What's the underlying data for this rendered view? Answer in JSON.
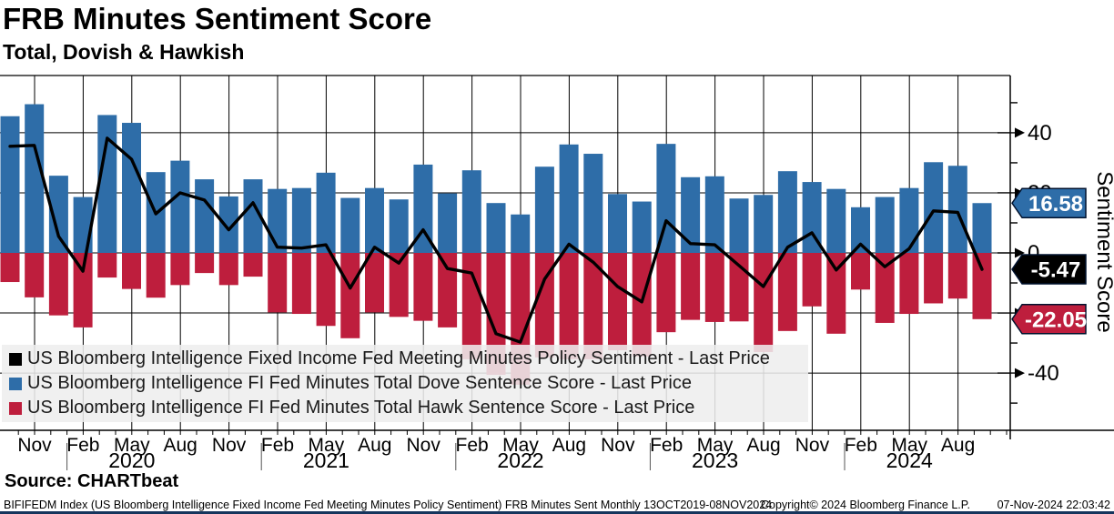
{
  "header": {
    "title": "FRB Minutes Sentiment Score",
    "subtitle": "Total, Dovish & Hawkish"
  },
  "chart_data": {
    "type": "combo_bar_line",
    "series": [
      {
        "name": "US Bloomberg Intelligence Fixed Income Fed Meeting Minutes Policy Sentiment - Last Price",
        "type": "line",
        "color": "#000000",
        "values": [
          35.5,
          35.8,
          5.5,
          -6.1,
          38.2,
          31.2,
          13.0,
          20.0,
          17.6,
          7.7,
          16.7,
          1.9,
          1.6,
          2.7,
          -11.7,
          1.9,
          -3.4,
          7.7,
          -5.2,
          -6.7,
          -26.9,
          -29.7,
          -8.7,
          2.9,
          -3.1,
          -11.2,
          -16.3,
          10.7,
          3.1,
          2.7,
          -4.2,
          -11.2,
          1.9,
          6.7,
          -5.7,
          2.9,
          -4.6,
          1.4,
          14.0,
          13.5,
          -5.47
        ]
      },
      {
        "name": "US Bloomberg Intelligence FI Fed Minutes Total Dove Sentence Score - Last Price",
        "type": "bar",
        "color": "#2e6da8",
        "values": [
          45.5,
          49.5,
          25.7,
          18.6,
          45.9,
          43.3,
          26.9,
          30.7,
          24.5,
          18.8,
          24.5,
          21.3,
          21.6,
          26.7,
          18.3,
          21.6,
          17.8,
          29.4,
          19.8,
          27.5,
          16.6,
          12.8,
          28.7,
          36.1,
          33.0,
          19.6,
          17.1,
          36.3,
          25.2,
          25.5,
          18.1,
          19.3,
          27.2,
          23.6,
          21.3,
          15.2,
          18.6,
          21.6,
          30.2,
          29.0,
          16.58
        ]
      },
      {
        "name": "US Bloomberg Intelligence FI Fed Minutes Total Hawk Sentence Score - Last Price",
        "type": "bar",
        "color": "#be1e3d",
        "values": [
          -9.7,
          -14.8,
          -20.8,
          -24.8,
          -8.2,
          -12.0,
          -14.9,
          -10.7,
          -6.7,
          -10.7,
          -7.9,
          -19.8,
          -20.3,
          -24.3,
          -28.4,
          -19.8,
          -21.3,
          -22.6,
          -24.8,
          -35.4,
          -40.6,
          -43.9,
          -34.8,
          -35.4,
          -35.4,
          -32.4,
          -34.5,
          -26.4,
          -22.3,
          -23.0,
          -22.8,
          -33.0,
          -26.0,
          -17.8,
          -26.9,
          -12.2,
          -23.3,
          -20.3,
          -16.8,
          -15.2,
          -22.05
        ]
      }
    ],
    "x_axis": {
      "month_labels": [
        "Nov",
        "Feb",
        "May",
        "Aug",
        "Nov",
        "Feb",
        "May",
        "Aug",
        "Nov",
        "Feb",
        "May",
        "Aug",
        "Nov",
        "Feb",
        "May",
        "Aug",
        "Nov",
        "Feb",
        "May",
        "Aug"
      ],
      "year_labels": [
        "2020",
        "2021",
        "2022",
        "2023",
        "2024"
      ]
    },
    "y_axis": {
      "label": "Sentiment Score",
      "major_ticks": [
        40,
        20,
        0,
        -20,
        -40
      ],
      "minor_ticks": [
        50,
        30,
        10,
        -10,
        -30,
        -50
      ],
      "ylim": [
        -59,
        59
      ],
      "grid": true
    },
    "last_value_tags": [
      {
        "label": "16.58",
        "value": 16.58,
        "color": "#2e6da8"
      },
      {
        "label": "-5.47",
        "value": -5.47,
        "color": "#000000"
      },
      {
        "label": "-22.05",
        "value": -22.05,
        "color": "#be1e3d"
      }
    ]
  },
  "legend": {
    "items": [
      {
        "label": "US Bloomberg Intelligence Fixed Income Fed Meeting Minutes Policy Sentiment - Last Price",
        "color": "#000000"
      },
      {
        "label": "US Bloomberg Intelligence FI Fed Minutes Total Dove Sentence Score - Last Price",
        "color": "#2e6da8"
      },
      {
        "label": "US Bloomberg Intelligence FI Fed Minutes Total Hawk Sentence Score - Last Price",
        "color": "#be1e3d"
      }
    ]
  },
  "source": {
    "label": "Source: CHARTbeat"
  },
  "footer": {
    "left": "BIFIFEDM Index (US Bloomberg Intelligence Fixed Income Fed Meeting Minutes Policy Sentiment) FRB Minutes Sent  Monthly 13OCT2019-08NOV2024",
    "copyright": "Copyright© 2024 Bloomberg Finance L.P.",
    "timestamp": "07-Nov-2024 22:03:42"
  }
}
